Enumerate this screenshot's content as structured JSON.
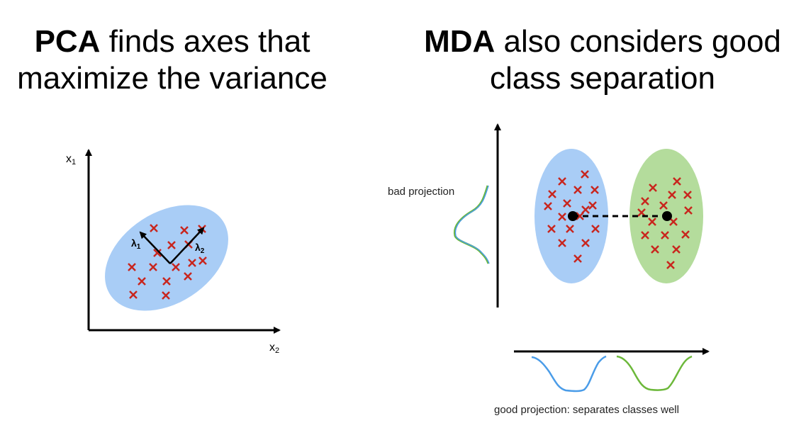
{
  "left_panel": {
    "title_keyword": "PCA",
    "title_line1_rest": " finds axes that",
    "title_line2": "maximize the variance",
    "axis_y_label": "x",
    "axis_y_sub": "1",
    "axis_x_label": "x",
    "axis_x_sub": "2",
    "lambda1": "λ",
    "lambda1_sub": "1",
    "lambda2": "λ",
    "lambda2_sub": "2"
  },
  "right_panel": {
    "title_keyword": "MDA",
    "title_line1_rest": " also considers good",
    "title_line2": "class separation",
    "bad_projection_label": "bad projection",
    "good_projection_label": "good projection: separates classes well"
  },
  "colors": {
    "blue_fill": "#a9cdf6",
    "green_fill": "#b4dc9c",
    "marker": "#c8261e",
    "blue_curve": "#4a9ce8",
    "green_curve": "#6cb83a"
  }
}
